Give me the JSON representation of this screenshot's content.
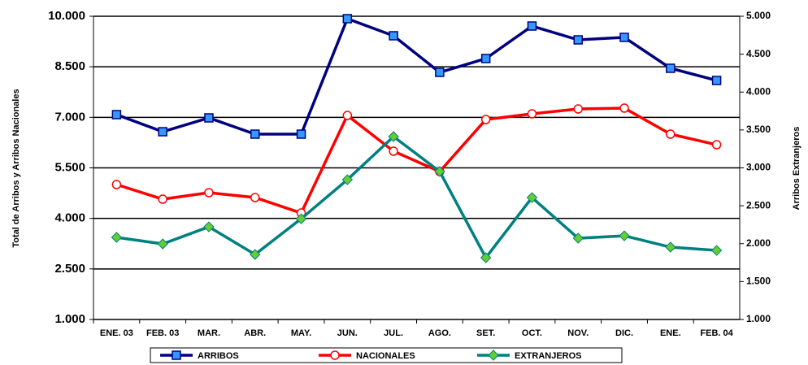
{
  "chart_data": {
    "type": "line",
    "y_label": "Total de Arribos y Arribos Nacionales",
    "y2_label": "Arribos Extranjeros",
    "categories": [
      "ENE. 03",
      "FEB. 03",
      "MAR.",
      "ABR.",
      "MAY.",
      "JUN.",
      "JUL.",
      "AGO.",
      "SET.",
      "OCT.",
      "NOV.",
      "DIC.",
      "ENE.",
      "FEB. 04"
    ],
    "series": [
      {
        "name": "ARRIBOS",
        "color": "#000080",
        "marker": "square",
        "marker_fill": "#3399ff",
        "values": [
          7080,
          6573,
          6984,
          6501,
          6501,
          9928,
          9421,
          8335,
          8745,
          9710,
          9300,
          9373,
          8456,
          8094
        ]
      },
      {
        "name": "NACIONALES",
        "color": "#ff0000",
        "marker": "circle",
        "marker_fill": "#ffffff",
        "values": [
          5005,
          4570,
          4764,
          4619,
          4160,
          7056,
          5994,
          5391,
          6935,
          7104,
          7249,
          7273,
          6501,
          6187
        ]
      },
      {
        "name": "EXTRANJEROS",
        "color": "#008080",
        "marker": "diamond",
        "marker_fill": "#66cc33",
        "axis": "y2",
        "values": [
          2083,
          1997,
          2222,
          1858,
          2329,
          2844,
          3413,
          2952,
          1815,
          2608,
          2072,
          2104,
          1954,
          1911
        ]
      }
    ],
    "ylim": [
      1000,
      10000
    ],
    "yticks": [
      {
        "value": 1000,
        "label": "1.000"
      },
      {
        "value": 2500,
        "label": "2.500"
      },
      {
        "value": 4000,
        "label": "4.000"
      },
      {
        "value": 5500,
        "label": "5.500"
      },
      {
        "value": 7000,
        "label": "7.000"
      },
      {
        "value": 8500,
        "label": "8.500"
      },
      {
        "value": 10000,
        "label": "10.000"
      }
    ],
    "y2lim": [
      1000,
      5000
    ],
    "y2ticks": [
      {
        "value": 1000,
        "label": "1.000"
      },
      {
        "value": 1500,
        "label": "1.500"
      },
      {
        "value": 2000,
        "label": "2.000"
      },
      {
        "value": 2500,
        "label": "2.500"
      },
      {
        "value": 3000,
        "label": "3.000"
      },
      {
        "value": 3500,
        "label": "3.500"
      },
      {
        "value": 4000,
        "label": "4.000"
      },
      {
        "value": 4500,
        "label": "4.500"
      },
      {
        "value": 5000,
        "label": "5.000"
      }
    ],
    "grid": true,
    "legend": "bottom"
  }
}
